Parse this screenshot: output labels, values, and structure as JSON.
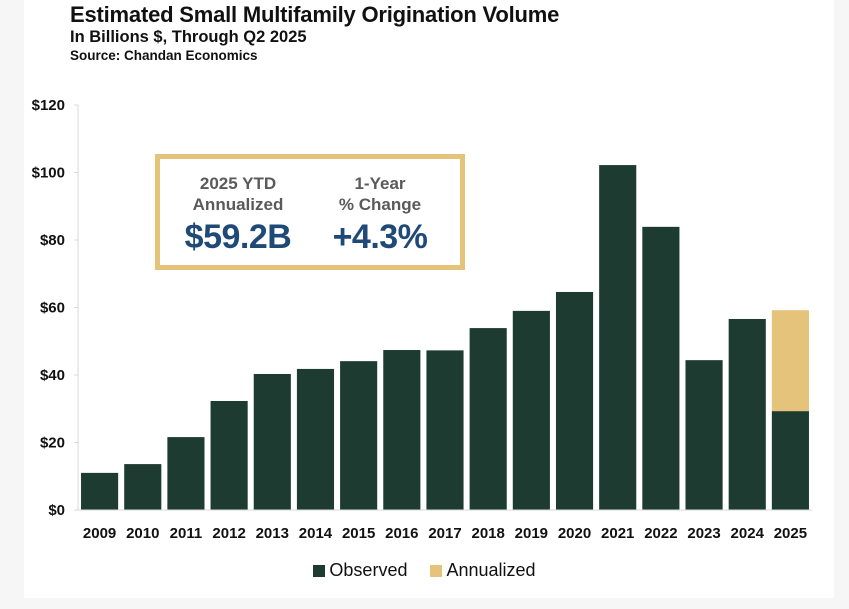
{
  "colors": {
    "observed": "#1e3b32",
    "annualized": "#e6c37b",
    "callout_border": "#e6c37b",
    "callout_value": "#1f4a78",
    "axis": "#d9d9d9"
  },
  "header": {
    "title": "Estimated Small Multifamily Origination Volume",
    "subtitle": "In Billions $, Through Q2 2025",
    "source": "Source: Chandan Economics"
  },
  "callout": {
    "left_label_line1": "2025 YTD",
    "left_label_line2": "Annualized",
    "left_value": "$59.2B",
    "right_label_line1": "1-Year",
    "right_label_line2": "% Change",
    "right_value": "+4.3%"
  },
  "chart_data": {
    "type": "bar",
    "stacked": true,
    "title": "Estimated Small Multifamily Origination Volume",
    "subtitle": "In Billions $, Through Q2 2025",
    "xlabel": "",
    "ylabel": "",
    "ylim": [
      0,
      120
    ],
    "yticks": [
      0,
      20,
      40,
      60,
      80,
      100,
      120
    ],
    "ytick_labels": [
      "$0",
      "$20",
      "$40",
      "$60",
      "$80",
      "$100",
      "$120"
    ],
    "grid": false,
    "legend_position": "bottom-center",
    "categories": [
      "2009",
      "2010",
      "2011",
      "2012",
      "2013",
      "2014",
      "2015",
      "2016",
      "2017",
      "2018",
      "2019",
      "2020",
      "2021",
      "2022",
      "2023",
      "2024",
      "2025"
    ],
    "series": [
      {
        "name": "Observed",
        "values": [
          11.0,
          13.6,
          21.6,
          32.3,
          40.3,
          41.8,
          44.1,
          47.4,
          47.3,
          53.9,
          59.0,
          64.6,
          102.2,
          83.9,
          44.4,
          56.6,
          29.3
        ]
      },
      {
        "name": "Annualized",
        "values": [
          0,
          0,
          0,
          0,
          0,
          0,
          0,
          0,
          0,
          0,
          0,
          0,
          0,
          0,
          0,
          0,
          29.9
        ]
      }
    ]
  },
  "legend": {
    "items": [
      {
        "label": "Observed"
      },
      {
        "label": "Annualized"
      }
    ]
  }
}
